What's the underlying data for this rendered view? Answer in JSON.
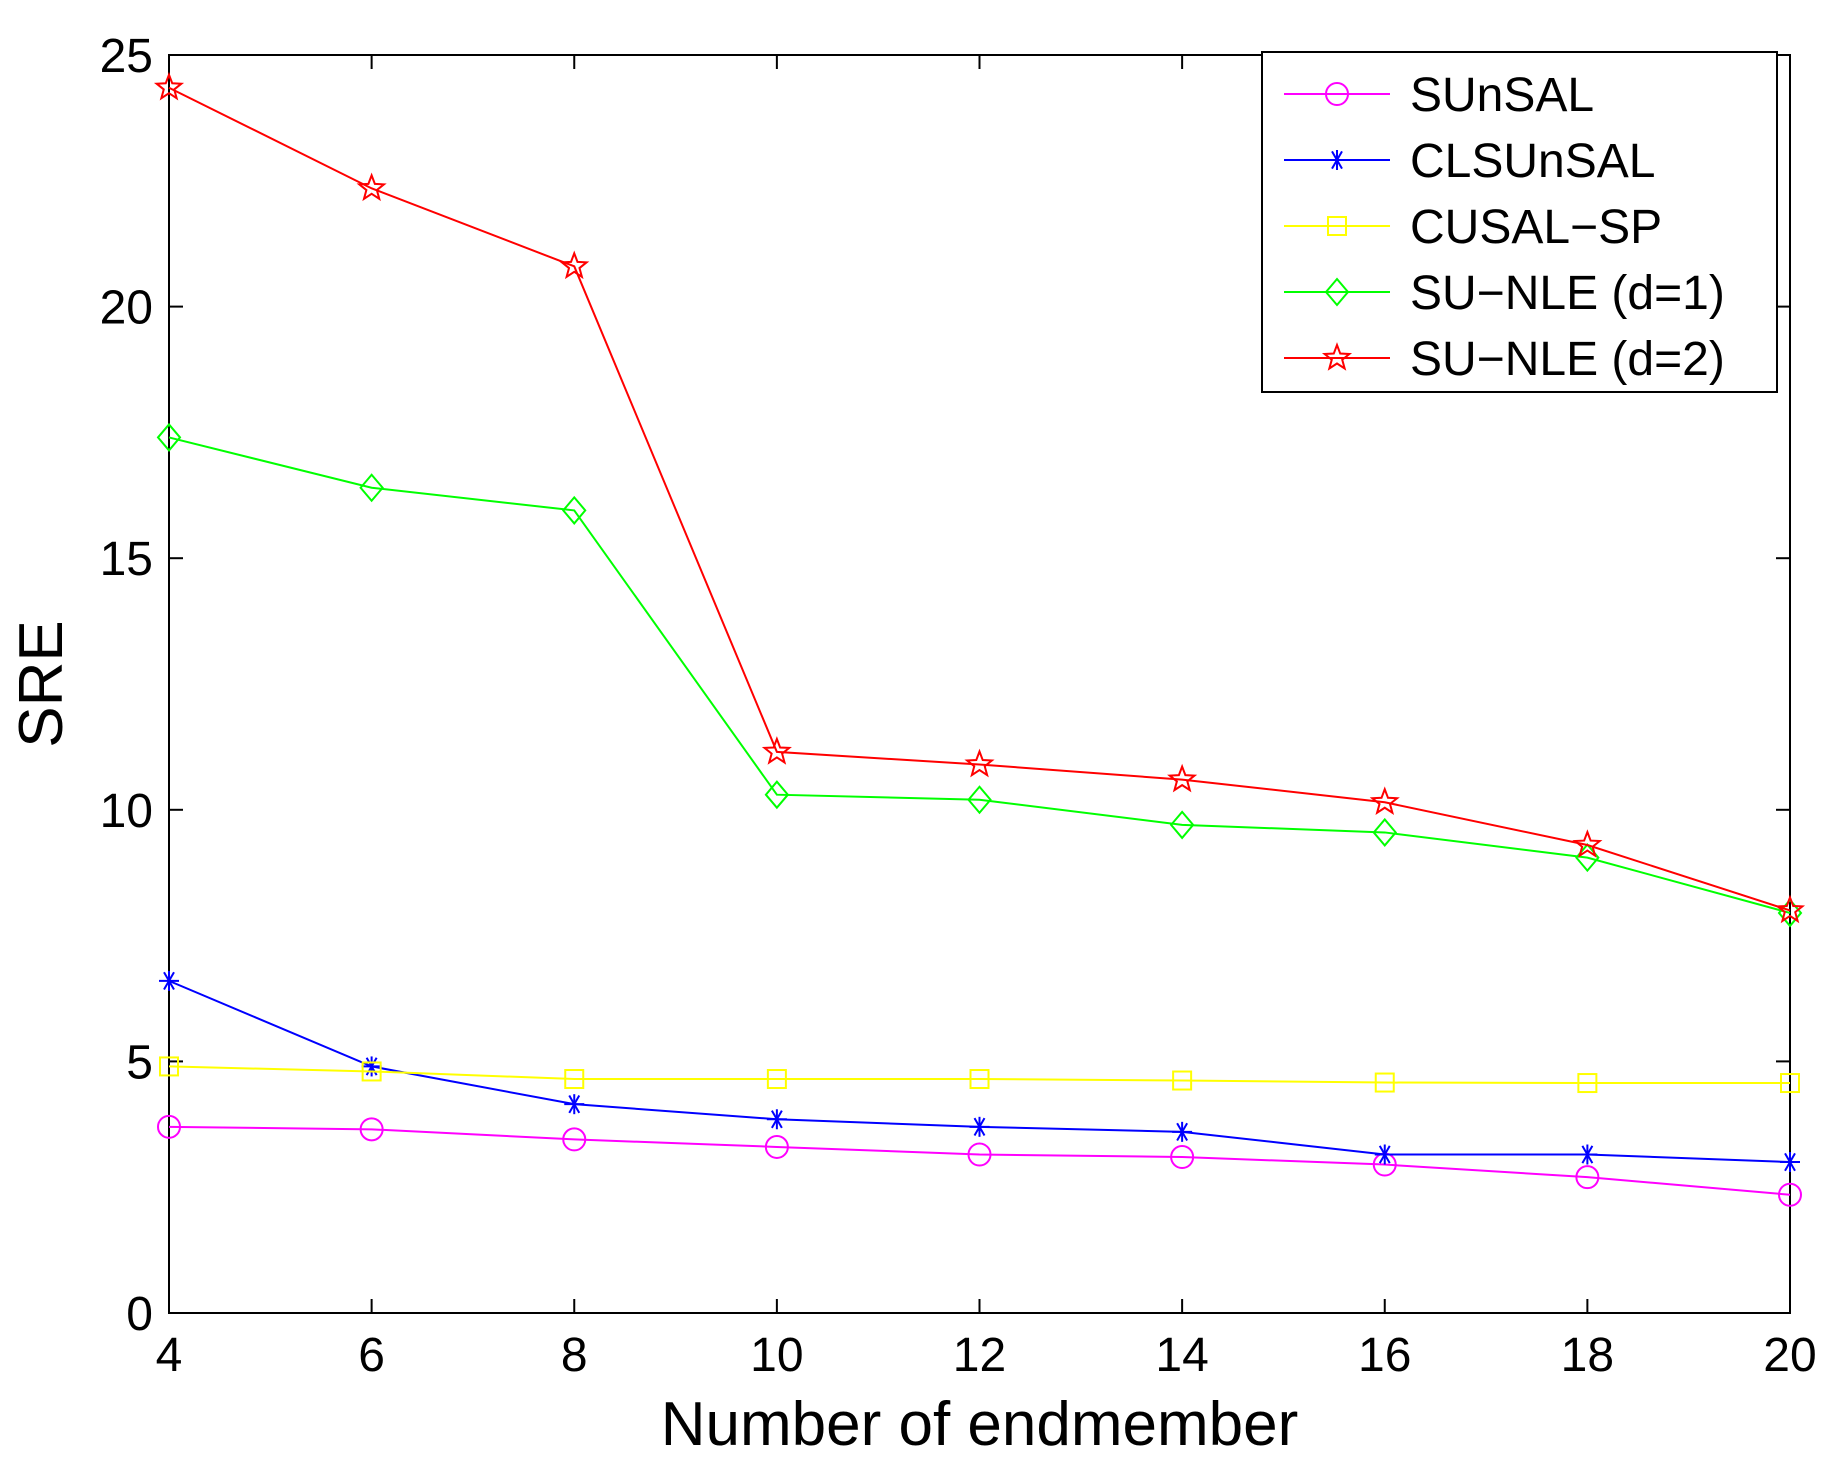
{
  "chart_data": {
    "type": "line",
    "title": "",
    "xlabel": "Number of endmember",
    "ylabel": "SRE",
    "x": [
      4,
      6,
      8,
      10,
      12,
      14,
      16,
      18,
      20
    ],
    "xlim": [
      4,
      20
    ],
    "ylim": [
      0,
      25
    ],
    "xticks": [
      "4",
      "6",
      "8",
      "10",
      "12",
      "14",
      "16",
      "18",
      "20"
    ],
    "yticks": [
      "0",
      "5",
      "10",
      "15",
      "20",
      "25"
    ],
    "grid": false,
    "legend_position": "top-right",
    "series": [
      {
        "name": "SUnSAL",
        "color": "#ff00ff",
        "marker": "circle",
        "values": [
          3.7,
          3.65,
          3.45,
          3.3,
          3.15,
          3.1,
          2.95,
          2.7,
          2.35
        ]
      },
      {
        "name": "CLSUnSAL",
        "color": "#0000ff",
        "marker": "asterisk",
        "values": [
          6.6,
          4.9,
          4.15,
          3.85,
          3.7,
          3.6,
          3.15,
          3.15,
          3.0
        ]
      },
      {
        "name": "CUSAL−SP",
        "color": "#ffff00",
        "marker": "square",
        "values": [
          4.9,
          4.8,
          4.65,
          4.65,
          4.65,
          4.62,
          4.58,
          4.57,
          4.57
        ]
      },
      {
        "name": "SU−NLE (d=1)",
        "color": "#00ff00",
        "marker": "diamond",
        "values": [
          17.4,
          16.4,
          15.95,
          10.3,
          10.2,
          9.7,
          9.55,
          9.05,
          7.95
        ]
      },
      {
        "name": "SU−NLE (d=2)",
        "color": "#ff0000",
        "marker": "star",
        "values": [
          24.35,
          22.35,
          20.8,
          11.15,
          10.9,
          10.6,
          10.15,
          9.3,
          8.0
        ]
      }
    ]
  }
}
